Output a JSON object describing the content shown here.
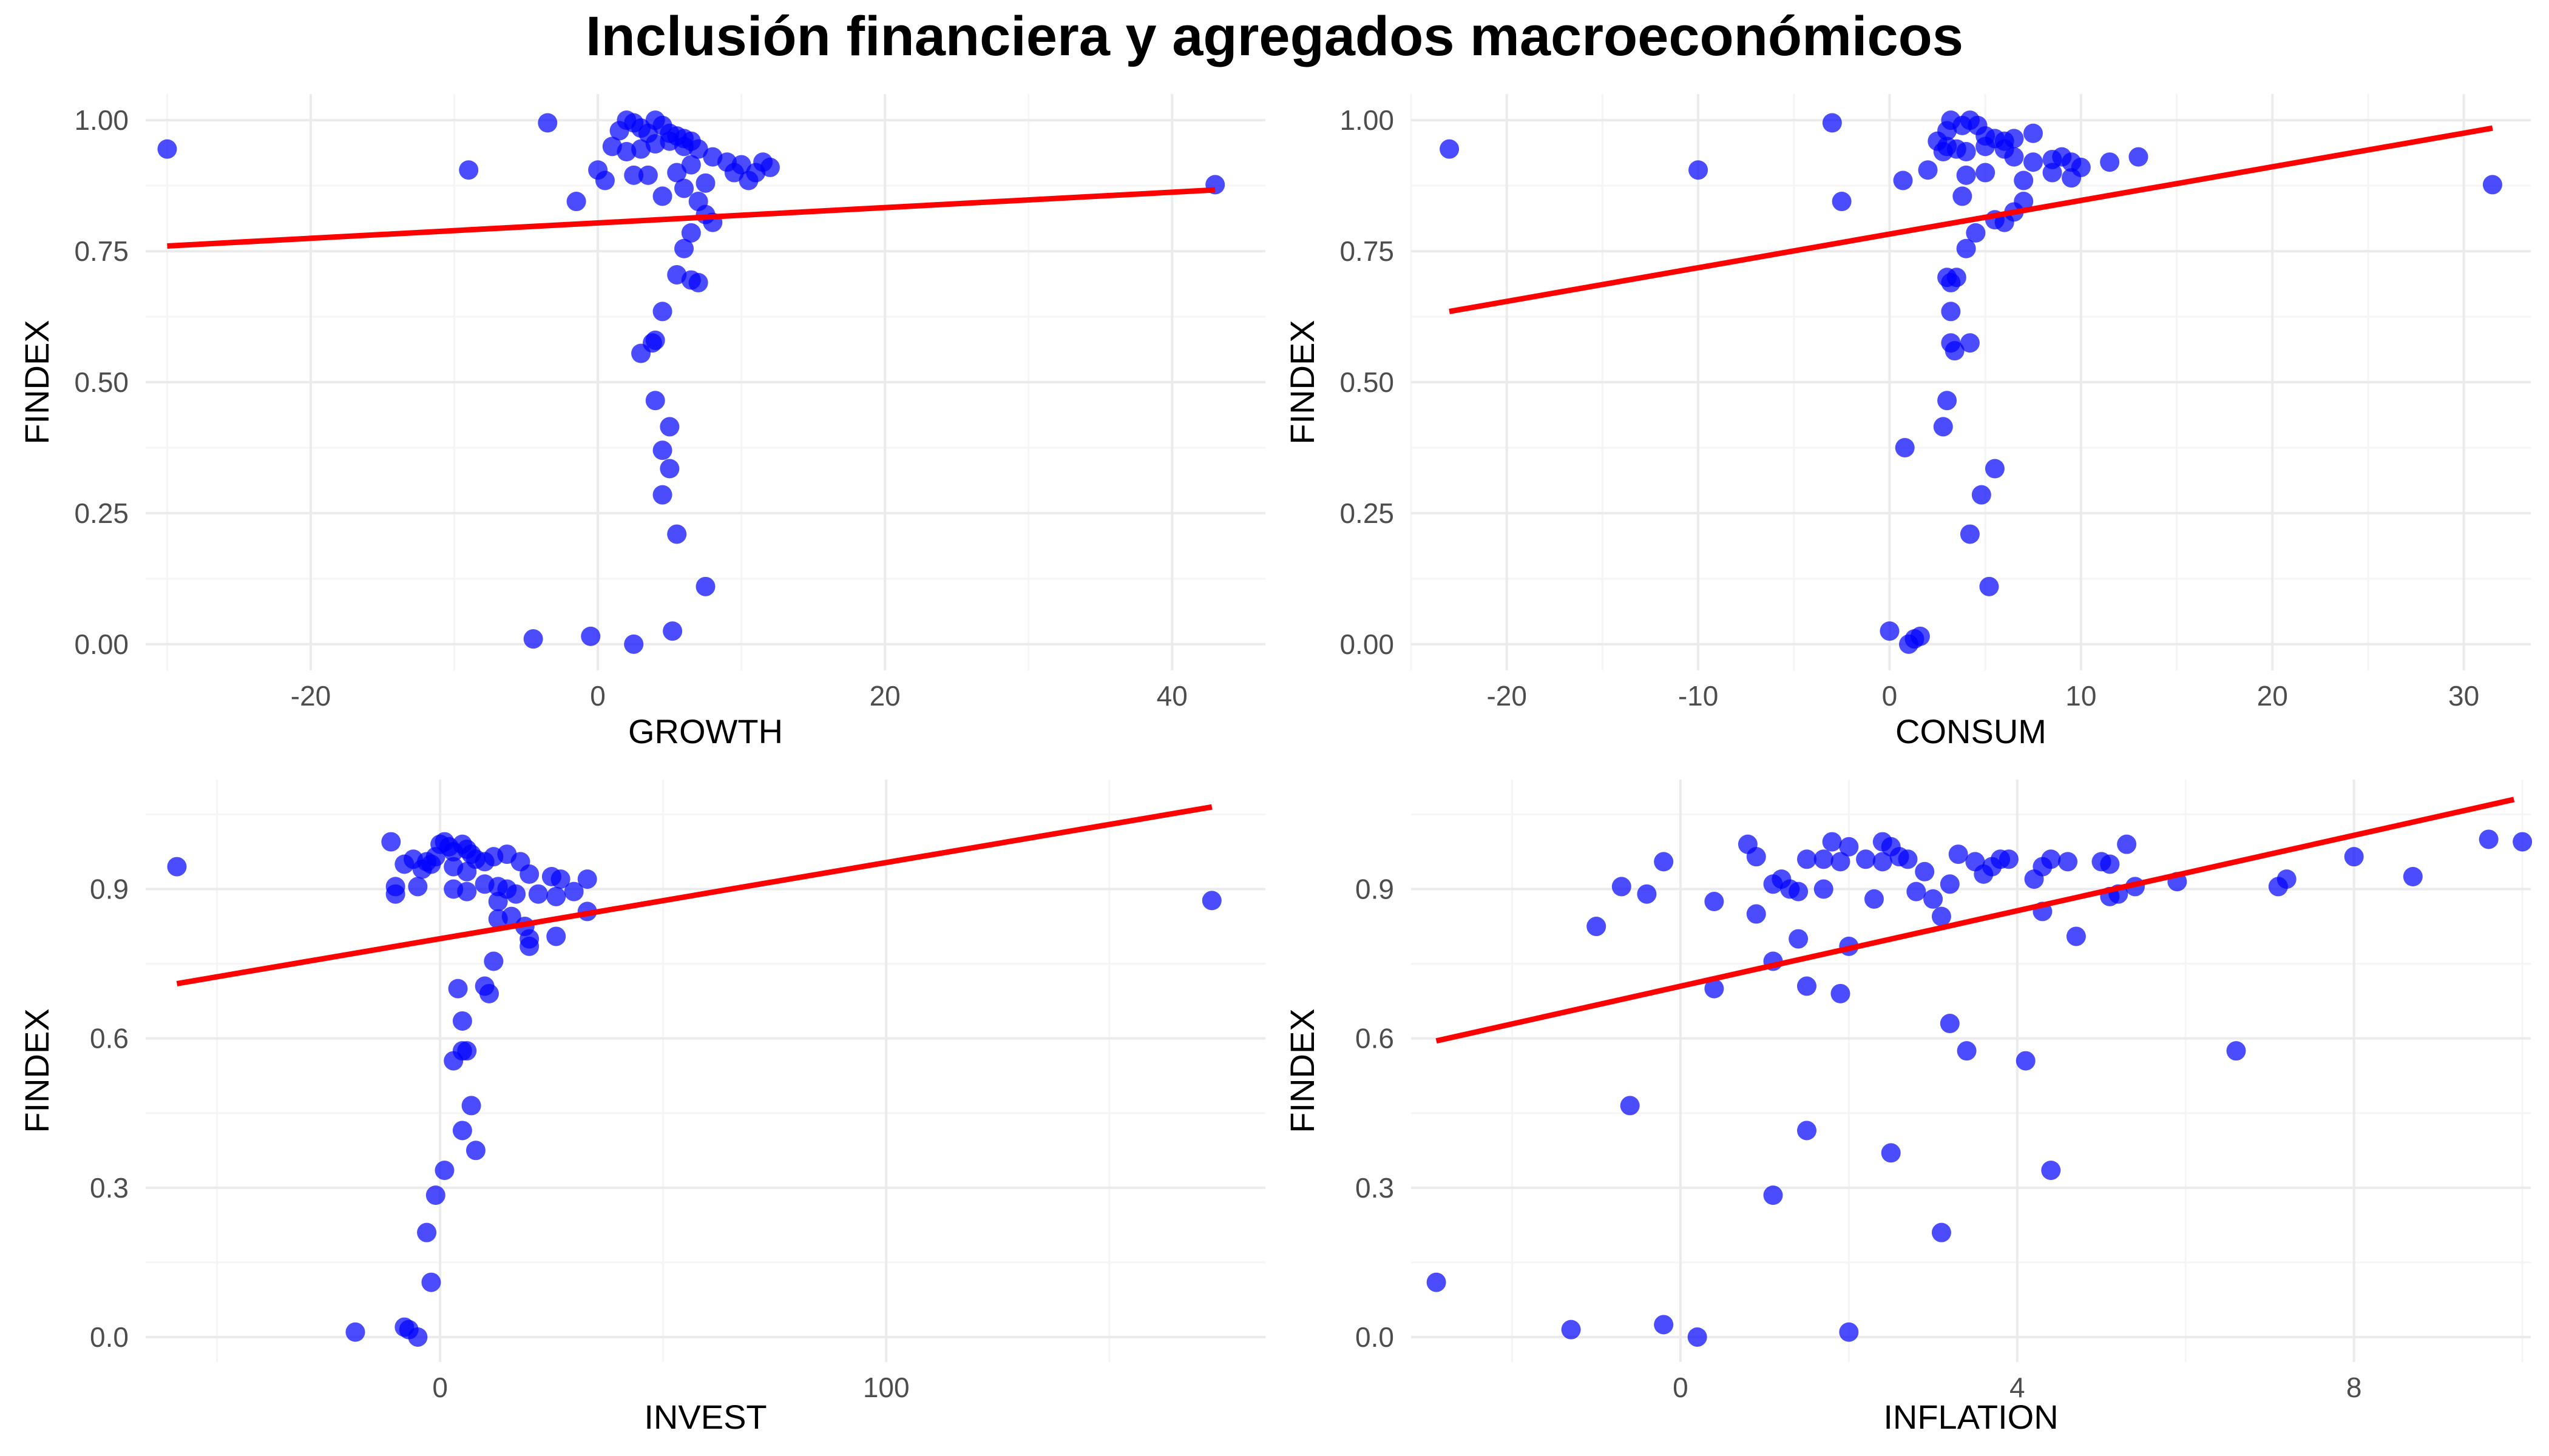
{
  "title": "Inclusión financiera y agregados macroeconómicos",
  "colors": {
    "points": "#0000FF",
    "fit_line": "#FF0000",
    "grid_major": "#EBEBEB",
    "grid_minor": "#F5F5F5",
    "tick_text": "#4D4D4D"
  },
  "chart_data": [
    {
      "type": "scatter",
      "xlabel": "GROWTH",
      "ylabel": "FINDEX",
      "xlim": [
        -31.5,
        46.5
      ],
      "ylim": [
        -0.05,
        1.05
      ],
      "x_ticks": [
        -20,
        0,
        20,
        40
      ],
      "y_ticks": [
        0.0,
        0.25,
        0.5,
        0.75,
        1.0
      ],
      "x_tick_labels": [
        "-20",
        "0",
        "20",
        "40"
      ],
      "y_tick_labels": [
        "0.00",
        "0.25",
        "0.50",
        "0.75",
        "1.00"
      ],
      "grid": true,
      "fit_line": {
        "x": [
          -30,
          43
        ],
        "y": [
          0.76,
          0.867
        ]
      },
      "points": [
        [
          -30,
          0.945
        ],
        [
          -9,
          0.905
        ],
        [
          -3.5,
          0.995
        ],
        [
          -1.5,
          0.845
        ],
        [
          0,
          0.905
        ],
        [
          0.5,
          0.885
        ],
        [
          1.5,
          0.98
        ],
        [
          2,
          1.0
        ],
        [
          2.5,
          0.995
        ],
        [
          3,
          0.985
        ],
        [
          3.5,
          0.975
        ],
        [
          4,
          1.0
        ],
        [
          4.5,
          0.99
        ],
        [
          5,
          0.975
        ],
        [
          5.5,
          0.97
        ],
        [
          6,
          0.965
        ],
        [
          6.5,
          0.96
        ],
        [
          1,
          0.95
        ],
        [
          2,
          0.94
        ],
        [
          3,
          0.945
        ],
        [
          4,
          0.955
        ],
        [
          5,
          0.96
        ],
        [
          6,
          0.95
        ],
        [
          7,
          0.945
        ],
        [
          2.5,
          0.895
        ],
        [
          3.5,
          0.895
        ],
        [
          5.5,
          0.9
        ],
        [
          6.5,
          0.915
        ],
        [
          8,
          0.93
        ],
        [
          9,
          0.92
        ],
        [
          10,
          0.915
        ],
        [
          10.5,
          0.885
        ],
        [
          11,
          0.9
        ],
        [
          11.5,
          0.92
        ],
        [
          12,
          0.91
        ],
        [
          9.5,
          0.9
        ],
        [
          7.5,
          0.88
        ],
        [
          6,
          0.87
        ],
        [
          4.5,
          0.855
        ],
        [
          7,
          0.845
        ],
        [
          7.5,
          0.82
        ],
        [
          8,
          0.805
        ],
        [
          6.5,
          0.785
        ],
        [
          6,
          0.755
        ],
        [
          5.5,
          0.705
        ],
        [
          6.5,
          0.695
        ],
        [
          7,
          0.69
        ],
        [
          4.5,
          0.635
        ],
        [
          4,
          0.58
        ],
        [
          3.8,
          0.575
        ],
        [
          3,
          0.555
        ],
        [
          4,
          0.465
        ],
        [
          5,
          0.415
        ],
        [
          4.5,
          0.37
        ],
        [
          5,
          0.335
        ],
        [
          4.5,
          0.285
        ],
        [
          5.5,
          0.21
        ],
        [
          7.5,
          0.11
        ],
        [
          -4.5,
          0.01
        ],
        [
          -0.5,
          0.015
        ],
        [
          2.5,
          0.0
        ],
        [
          5.2,
          0.025
        ],
        [
          43,
          0.877
        ]
      ]
    },
    {
      "type": "scatter",
      "xlabel": "CONSUM",
      "ylabel": "FINDEX",
      "xlim": [
        -25,
        33.5
      ],
      "ylim": [
        -0.05,
        1.05
      ],
      "x_ticks": [
        -20,
        -10,
        0,
        10,
        20,
        30
      ],
      "y_ticks": [
        0.0,
        0.25,
        0.5,
        0.75,
        1.0
      ],
      "x_tick_labels": [
        "-20",
        "-10",
        "0",
        "10",
        "20",
        "30"
      ],
      "y_tick_labels": [
        "0.00",
        "0.25",
        "0.50",
        "0.75",
        "1.00"
      ],
      "grid": true,
      "fit_line": {
        "x": [
          -23,
          31.5
        ],
        "y": [
          0.635,
          0.985
        ]
      },
      "points": [
        [
          -23,
          0.945
        ],
        [
          -10,
          0.905
        ],
        [
          -3,
          0.995
        ],
        [
          -2.5,
          0.845
        ],
        [
          0.7,
          0.885
        ],
        [
          2,
          0.905
        ],
        [
          2.5,
          0.96
        ],
        [
          3,
          0.98
        ],
        [
          3.2,
          1.0
        ],
        [
          3.8,
          0.99
        ],
        [
          4.2,
          1.0
        ],
        [
          4.6,
          0.99
        ],
        [
          5,
          0.97
        ],
        [
          5.5,
          0.965
        ],
        [
          6,
          0.96
        ],
        [
          6.5,
          0.965
        ],
        [
          7.5,
          0.975
        ],
        [
          3,
          0.95
        ],
        [
          3.5,
          0.945
        ],
        [
          4,
          0.94
        ],
        [
          5,
          0.95
        ],
        [
          6,
          0.945
        ],
        [
          2.8,
          0.94
        ],
        [
          4,
          0.895
        ],
        [
          5,
          0.9
        ],
        [
          6.5,
          0.93
        ],
        [
          7.5,
          0.92
        ],
        [
          8.5,
          0.925
        ],
        [
          9,
          0.93
        ],
        [
          9.5,
          0.92
        ],
        [
          10,
          0.91
        ],
        [
          11.5,
          0.92
        ],
        [
          13,
          0.93
        ],
        [
          8.5,
          0.9
        ],
        [
          9.5,
          0.89
        ],
        [
          7,
          0.885
        ],
        [
          3.8,
          0.855
        ],
        [
          7,
          0.845
        ],
        [
          6.5,
          0.825
        ],
        [
          5.5,
          0.81
        ],
        [
          6,
          0.805
        ],
        [
          4.5,
          0.785
        ],
        [
          4,
          0.755
        ],
        [
          3,
          0.7
        ],
        [
          3.5,
          0.7
        ],
        [
          3.2,
          0.69
        ],
        [
          3.2,
          0.635
        ],
        [
          3.2,
          0.575
        ],
        [
          4.2,
          0.575
        ],
        [
          3.4,
          0.56
        ],
        [
          3,
          0.465
        ],
        [
          2.8,
          0.415
        ],
        [
          0.8,
          0.375
        ],
        [
          5.5,
          0.335
        ],
        [
          4.8,
          0.285
        ],
        [
          4.2,
          0.21
        ],
        [
          5.2,
          0.11
        ],
        [
          0,
          0.025
        ],
        [
          1,
          0.0
        ],
        [
          1.3,
          0.01
        ],
        [
          1.6,
          0.015
        ],
        [
          31.5,
          0.877
        ]
      ]
    },
    {
      "type": "scatter",
      "xlabel": "INVEST",
      "ylabel": "FINDEX",
      "xlim": [
        -66,
        185
      ],
      "ylim": [
        -0.05,
        1.12
      ],
      "x_ticks": [
        0,
        100
      ],
      "y_ticks": [
        0.0,
        0.3,
        0.6,
        0.9
      ],
      "x_tick_labels": [
        "0",
        "100"
      ],
      "y_tick_labels": [
        "0.0",
        "0.3",
        "0.6",
        "0.9"
      ],
      "grid": true,
      "fit_line": {
        "x": [
          -59,
          173
        ],
        "y": [
          0.71,
          1.065
        ]
      },
      "points": [
        [
          -59,
          0.945
        ],
        [
          -11,
          0.995
        ],
        [
          -10,
          0.905
        ],
        [
          -10,
          0.89
        ],
        [
          -8,
          0.95
        ],
        [
          -6,
          0.96
        ],
        [
          -3,
          0.955
        ],
        [
          -1,
          0.965
        ],
        [
          0,
          0.99
        ],
        [
          1,
          0.995
        ],
        [
          2,
          0.985
        ],
        [
          3,
          0.975
        ],
        [
          5,
          0.99
        ],
        [
          6,
          0.98
        ],
        [
          7,
          0.97
        ],
        [
          8,
          0.96
        ],
        [
          -2,
          0.95
        ],
        [
          -4,
          0.94
        ],
        [
          3,
          0.945
        ],
        [
          6,
          0.935
        ],
        [
          10,
          0.955
        ],
        [
          12,
          0.965
        ],
        [
          15,
          0.97
        ],
        [
          18,
          0.955
        ],
        [
          20,
          0.93
        ],
        [
          -5,
          0.905
        ],
        [
          3,
          0.9
        ],
        [
          6,
          0.895
        ],
        [
          10,
          0.91
        ],
        [
          13,
          0.905
        ],
        [
          15,
          0.9
        ],
        [
          17,
          0.89
        ],
        [
          22,
          0.89
        ],
        [
          25,
          0.925
        ],
        [
          27,
          0.92
        ],
        [
          30,
          0.895
        ],
        [
          33,
          0.92
        ],
        [
          26,
          0.885
        ],
        [
          13,
          0.875
        ],
        [
          16,
          0.845
        ],
        [
          13,
          0.84
        ],
        [
          19,
          0.825
        ],
        [
          20,
          0.8
        ],
        [
          20,
          0.785
        ],
        [
          26,
          0.805
        ],
        [
          33,
          0.855
        ],
        [
          12,
          0.755
        ],
        [
          10,
          0.705
        ],
        [
          11,
          0.69
        ],
        [
          4,
          0.7
        ],
        [
          5,
          0.635
        ],
        [
          5,
          0.575
        ],
        [
          6,
          0.575
        ],
        [
          3,
          0.555
        ],
        [
          7,
          0.465
        ],
        [
          5,
          0.415
        ],
        [
          8,
          0.375
        ],
        [
          1,
          0.335
        ],
        [
          -1,
          0.285
        ],
        [
          -3,
          0.21
        ],
        [
          -2,
          0.11
        ],
        [
          -19,
          0.01
        ],
        [
          -8,
          0.02
        ],
        [
          -7,
          0.015
        ],
        [
          -5,
          0.0
        ],
        [
          173,
          0.877
        ]
      ]
    },
    {
      "type": "scatter",
      "xlabel": "INFLATION",
      "ylabel": "FINDEX",
      "xlim": [
        -3.2,
        10.1
      ],
      "ylim": [
        -0.05,
        1.12
      ],
      "x_ticks": [
        0,
        4,
        8
      ],
      "y_ticks": [
        0.0,
        0.3,
        0.6,
        0.9
      ],
      "x_tick_labels": [
        "0",
        "4",
        "8"
      ],
      "y_tick_labels": [
        "0.0",
        "0.3",
        "0.6",
        "0.9"
      ],
      "grid": true,
      "fit_line": {
        "x": [
          -2.9,
          9.9
        ],
        "y": [
          0.595,
          1.08
        ]
      },
      "points": [
        [
          -2.9,
          0.11
        ],
        [
          -1.3,
          0.015
        ],
        [
          -0.2,
          0.025
        ],
        [
          0.2,
          0.0
        ],
        [
          2,
          0.01
        ],
        [
          -1,
          0.825
        ],
        [
          -0.7,
          0.905
        ],
        [
          -0.4,
          0.89
        ],
        [
          -0.2,
          0.955
        ],
        [
          0.4,
          0.875
        ],
        [
          0.4,
          0.7
        ],
        [
          0.8,
          0.99
        ],
        [
          0.9,
          0.965
        ],
        [
          0.9,
          0.85
        ],
        [
          1.1,
          0.91
        ],
        [
          1.2,
          0.92
        ],
        [
          1.1,
          0.755
        ],
        [
          1.3,
          0.9
        ],
        [
          1.4,
          0.895
        ],
        [
          1.4,
          0.8
        ],
        [
          1.5,
          0.96
        ],
        [
          1.5,
          0.705
        ],
        [
          1.7,
          0.96
        ],
        [
          1.7,
          0.9
        ],
        [
          1.8,
          0.995
        ],
        [
          1.9,
          0.955
        ],
        [
          2,
          0.985
        ],
        [
          1.9,
          0.69
        ],
        [
          2,
          0.785
        ],
        [
          2.2,
          0.96
        ],
        [
          2.3,
          0.88
        ],
        [
          2.4,
          0.955
        ],
        [
          2.4,
          0.995
        ],
        [
          2.5,
          0.985
        ],
        [
          2.6,
          0.965
        ],
        [
          2.7,
          0.96
        ],
        [
          2.8,
          0.895
        ],
        [
          2.9,
          0.935
        ],
        [
          3,
          0.88
        ],
        [
          3.1,
          0.845
        ],
        [
          3.2,
          0.91
        ],
        [
          3.3,
          0.97
        ],
        [
          3.5,
          0.955
        ],
        [
          3.6,
          0.93
        ],
        [
          3.7,
          0.945
        ],
        [
          3.8,
          0.96
        ],
        [
          3.9,
          0.96
        ],
        [
          4.2,
          0.92
        ],
        [
          4.3,
          0.945
        ],
        [
          4.4,
          0.96
        ],
        [
          4.6,
          0.955
        ],
        [
          5,
          0.955
        ],
        [
          5.1,
          0.95
        ],
        [
          5.1,
          0.885
        ],
        [
          5.2,
          0.89
        ],
        [
          5.3,
          0.99
        ],
        [
          5.4,
          0.905
        ],
        [
          4.7,
          0.805
        ],
        [
          4.3,
          0.855
        ],
        [
          5.9,
          0.915
        ],
        [
          7.1,
          0.905
        ],
        [
          7.2,
          0.92
        ],
        [
          8,
          0.965
        ],
        [
          8.7,
          0.925
        ],
        [
          9.6,
          1.0
        ],
        [
          10,
          0.995
        ],
        [
          3.2,
          0.63
        ],
        [
          3.4,
          0.575
        ],
        [
          4.1,
          0.555
        ],
        [
          6.6,
          0.575
        ],
        [
          -0.6,
          0.465
        ],
        [
          1.5,
          0.415
        ],
        [
          2.5,
          0.37
        ],
        [
          4.4,
          0.335
        ],
        [
          1.1,
          0.285
        ],
        [
          3.1,
          0.21
        ]
      ]
    }
  ]
}
